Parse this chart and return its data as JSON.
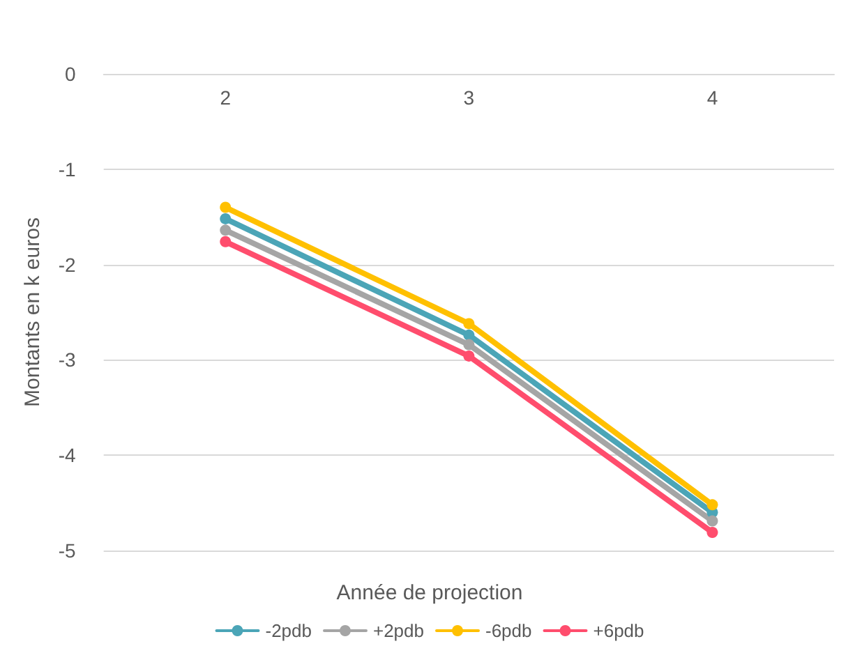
{
  "chart_data": {
    "type": "line",
    "xlabel": "Année de projection",
    "ylabel": "Montants en k euros",
    "categories": [
      "2",
      "3",
      "4"
    ],
    "series": [
      {
        "name": "-2pdb",
        "color": "#4ba5b7",
        "values": [
          -1.52,
          -2.74,
          -4.6
        ]
      },
      {
        "name": "+2pdb",
        "color": "#a5a5a5",
        "values": [
          -1.64,
          -2.84,
          -4.69
        ]
      },
      {
        "name": "-6pdb",
        "color": "#ffc000",
        "values": [
          -1.4,
          -2.62,
          -4.52
        ]
      },
      {
        "name": "+6pdb",
        "color": "#ff4d6d",
        "values": [
          -1.76,
          -2.96,
          -4.81
        ]
      }
    ],
    "ylim": [
      -5,
      0
    ],
    "yticks": [
      0,
      -1,
      -2,
      -3,
      -4,
      -5
    ],
    "grid": "y",
    "legend": "bottom",
    "marker": "circle",
    "line_style": "solid"
  }
}
